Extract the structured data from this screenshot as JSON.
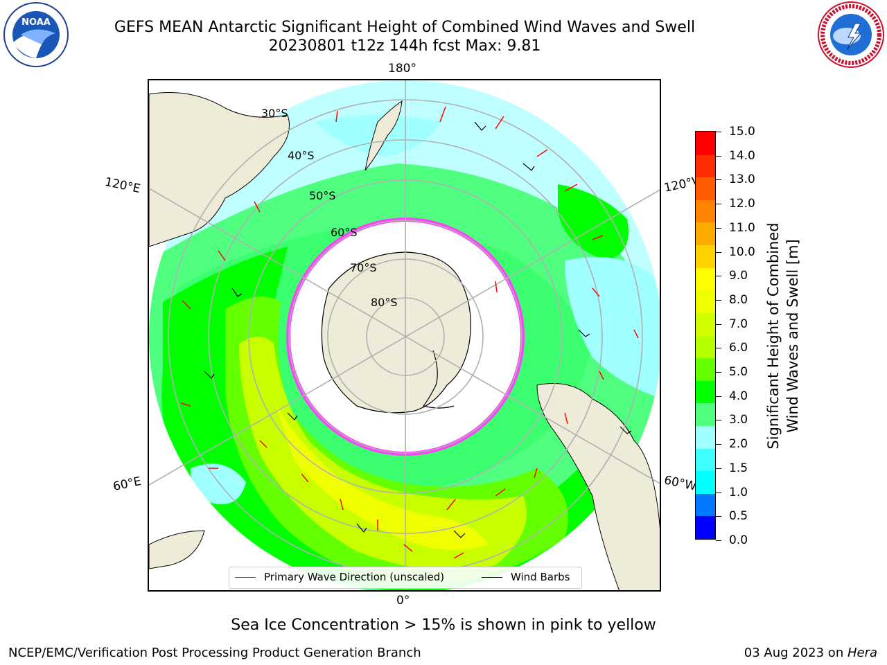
{
  "header": {
    "title_line1": "GEFS MEAN Antarctic Significant Height of Combined Wind Waves and Swell",
    "title_line2": "20230801 t12z 144h fcst   Max: 9.81"
  },
  "logos": {
    "left": {
      "icon": "noaa-logo",
      "text": "NOAA"
    },
    "right": {
      "icon": "national-weather-service-logo",
      "text": "NATIONAL WEATHER SERVICE"
    }
  },
  "map": {
    "projection": "south-polar-stereographic",
    "longitude_labels": {
      "top": "180°",
      "bottom": "0°",
      "upper_left": "120°E",
      "lower_left": "60°E",
      "upper_right": "120°W",
      "lower_right": "60°W"
    },
    "latitude_labels": [
      "30°S",
      "40°S",
      "50°S",
      "60°S",
      "70°S",
      "80°S"
    ],
    "colors": {
      "land": "#efebd9",
      "coastline": "#000000",
      "graticule": "#b0b0b0",
      "sea_ice": [
        "#ff40ff",
        "#ffe000"
      ]
    }
  },
  "legend": {
    "primary_wave": {
      "label": "Primary Wave Direction (unscaled)",
      "color": "#ff0000"
    },
    "wind_barbs": {
      "label": "Wind Barbs",
      "color": "#000000"
    }
  },
  "colorbar": {
    "title_line1": "Significant Height of Combined",
    "title_line2": "Wind Waves and Swell [m]",
    "ticks": [
      "15.0",
      "14.0",
      "13.0",
      "12.0",
      "11.0",
      "10.0",
      "9.0",
      "8.0",
      "7.0",
      "6.0",
      "5.0",
      "4.0",
      "3.0",
      "2.0",
      "1.5",
      "1.0",
      "0.5",
      "0.0"
    ],
    "colors": [
      "#0000ff",
      "#0078ff",
      "#00ffff",
      "#40ffff",
      "#a0ffff",
      "#50ff80",
      "#00ff00",
      "#64ff00",
      "#b4ff00",
      "#d2ff00",
      "#f0ff00",
      "#ffff00",
      "#ffd200",
      "#ffaa00",
      "#ff8200",
      "#ff5a00",
      "#ff2d00",
      "#ff0000"
    ]
  },
  "note": "Sea Ice Concentration > 15% is shown in pink to yellow",
  "footer": {
    "left": "NCEP/EMC/Verification Post Processing Product Generation Branch",
    "right_date": "03 Aug 2023 on ",
    "right_host": "Hera"
  }
}
